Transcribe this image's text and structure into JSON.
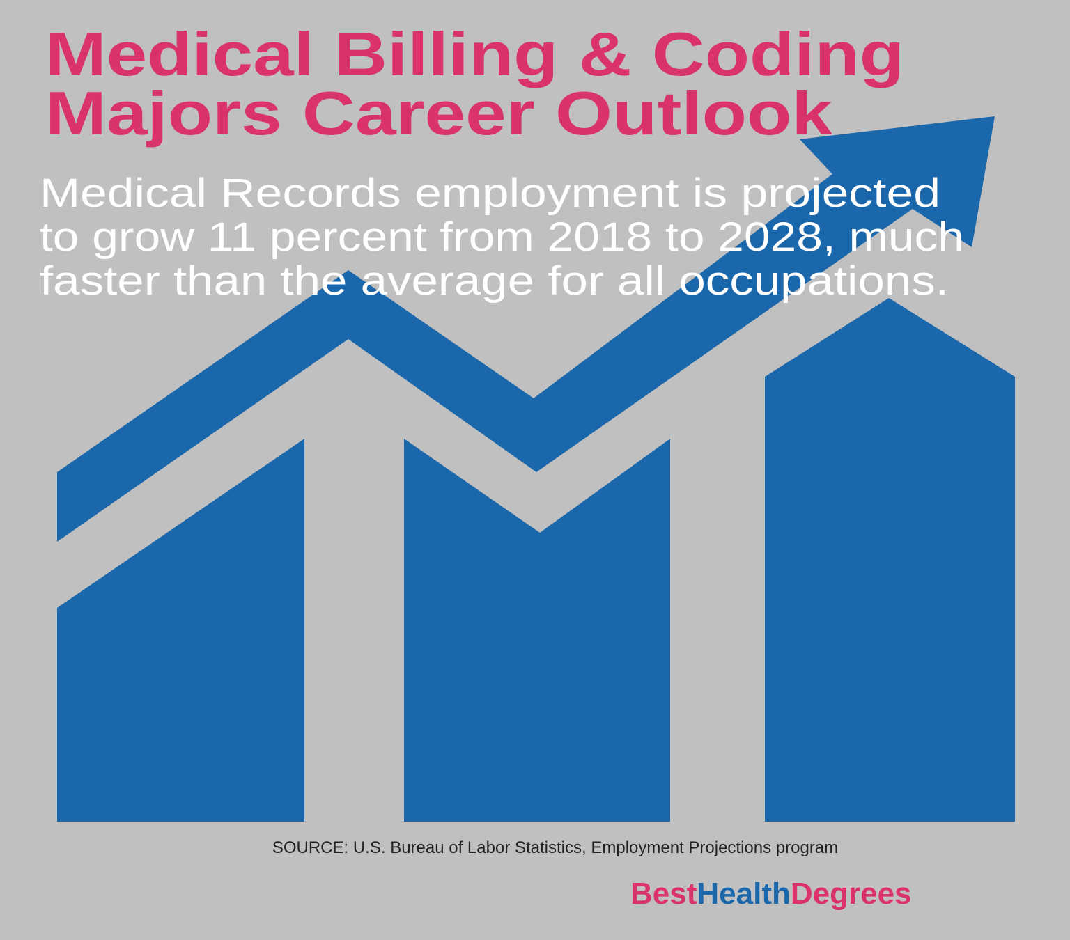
{
  "header": {
    "title_lines": [
      "Medical Billing & Coding",
      "Majors Career Outlook"
    ]
  },
  "body": {
    "lines": [
      "Medical Records employment is projected",
      "to grow 11 percent from 2018 to 2028, much",
      "faster than the average for all occupations."
    ]
  },
  "footer": {
    "source": "SOURCE: U.S. Bureau of Labor Statistics, Employment Projections program",
    "brand": [
      "Best",
      "Health",
      "Degrees"
    ]
  }
}
